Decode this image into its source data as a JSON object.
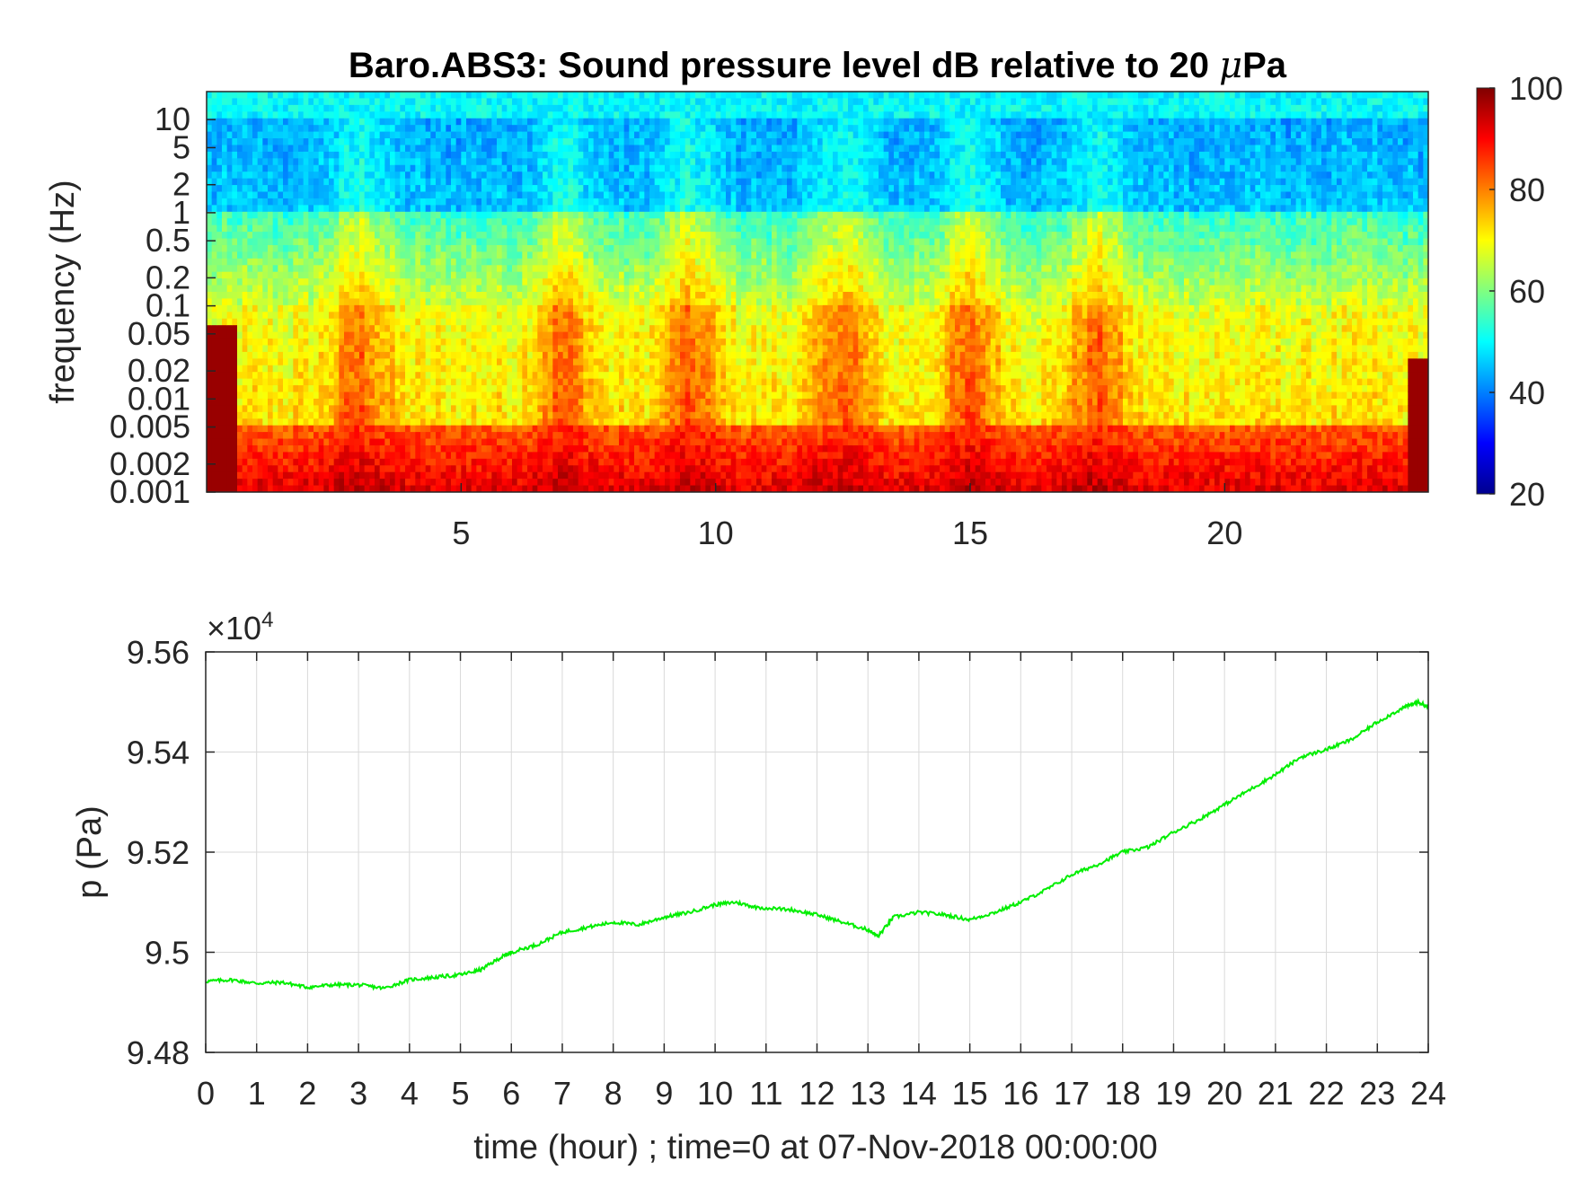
{
  "chart_data": [
    {
      "type": "heatmap",
      "title": "Baro.ABS3: Sound pressure level dB relative to 20 μPa",
      "title_prefix": "Baro.ABS3: Sound pressure level dB relative to 20 ",
      "title_mu": "μ",
      "title_suffix": "Pa",
      "ylabel": "frequency (Hz)",
      "y_scale": "log",
      "y_tick_labels": [
        "10",
        "5",
        "2",
        "1",
        "0.5",
        "0.2",
        "0.1",
        "0.05",
        "0.02",
        "0.01",
        "0.005",
        "0.002",
        "0.001"
      ],
      "y_tick_values": [
        10,
        5,
        2,
        1,
        0.5,
        0.2,
        0.1,
        0.05,
        0.02,
        0.01,
        0.005,
        0.002,
        0.001
      ],
      "ylim": [
        0.001,
        20
      ],
      "x_tick_labels": [
        "5",
        "10",
        "15",
        "20"
      ],
      "x_tick_values": [
        5,
        10,
        15,
        20
      ],
      "xlim": [
        0,
        24
      ],
      "colorscale": "jet",
      "colorbar": {
        "min": 20,
        "max": 100,
        "tick_labels": [
          "100",
          "80",
          "60",
          "40",
          "20"
        ],
        "tick_values": [
          100,
          80,
          60,
          40,
          20
        ]
      },
      "description_levels_by_band": [
        {
          "band": "above 10 Hz",
          "db": 50
        },
        {
          "band": "1-10 Hz",
          "db": 43
        },
        {
          "band": "0.1-1 Hz",
          "db": 63
        },
        {
          "band": "0.01-0.1 Hz",
          "db": 72
        },
        {
          "band": "0.001-0.005 Hz",
          "db": 88
        }
      ],
      "activity_peaks_hours": [
        3,
        7,
        9.5,
        12.5,
        15,
        17.5
      ]
    },
    {
      "type": "line",
      "ylabel": "p (Pa)",
      "xlabel": "time (hour) ; time=0 at 07-Nov-2018 00:00:00",
      "y_multiplier_base": "×10",
      "y_multiplier_exp": "4",
      "xlim": [
        0,
        24
      ],
      "ylim": [
        94800,
        95600
      ],
      "x_tick_labels": [
        "0",
        "1",
        "2",
        "3",
        "4",
        "5",
        "6",
        "7",
        "8",
        "9",
        "10",
        "11",
        "12",
        "13",
        "14",
        "15",
        "16",
        "17",
        "18",
        "19",
        "20",
        "21",
        "22",
        "23",
        "24"
      ],
      "y_tick_labels": [
        "9.56",
        "9.54",
        "9.52",
        "9.5",
        "9.48"
      ],
      "y_tick_values": [
        95600,
        95400,
        95200,
        95000,
        94800
      ],
      "grid": true,
      "series": [
        {
          "color": "#00ee00",
          "x": [
            0,
            0.5,
            1,
            1.5,
            2,
            2.5,
            3,
            3.5,
            4,
            4.5,
            5,
            5.4,
            5.8,
            6,
            6.5,
            7,
            7.5,
            8,
            8.5,
            9,
            9.5,
            10,
            10.4,
            10.8,
            11.5,
            12,
            12.5,
            13,
            13.2,
            13.5,
            14,
            14.5,
            15,
            15.5,
            16,
            16.5,
            17,
            17.5,
            18,
            18.5,
            19,
            19.5,
            20,
            20.5,
            21,
            21.5,
            22,
            22.5,
            23,
            23.5,
            23.8,
            24
          ],
          "y": [
            94942,
            94945,
            94938,
            94940,
            94930,
            94935,
            94935,
            94928,
            94945,
            94950,
            94955,
            94965,
            94990,
            95000,
            95015,
            95040,
            95050,
            95060,
            95055,
            95070,
            95080,
            95095,
            95100,
            95090,
            95085,
            95075,
            95060,
            95045,
            95032,
            95070,
            95080,
            95075,
            95065,
            95080,
            95100,
            95125,
            95155,
            95175,
            95200,
            95210,
            95240,
            95265,
            95295,
            95325,
            95355,
            95390,
            95405,
            95425,
            95460,
            95488,
            95500,
            95490
          ]
        }
      ]
    }
  ]
}
